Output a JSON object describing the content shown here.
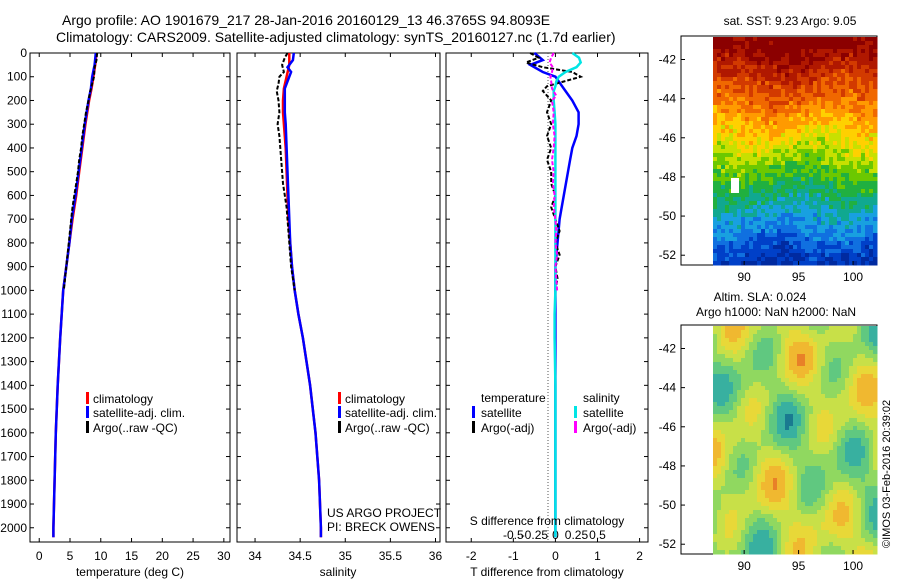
{
  "header": {
    "title_line1": "Argo profile: AO 1901679_217 28-Jan-2016 20160129_13 46.3765S 94.8093E",
    "title_line2": "Climatology: CARS2009. Satellite-adjusted climatology: synTS_20160127.nc (1.7d earlier)"
  },
  "chart_data": [
    {
      "type": "line",
      "id": "temperature",
      "xlabel": "temperature (deg C)",
      "ylabel": "",
      "xlim": [
        -1.5,
        31
      ],
      "ylim": [
        0,
        2060
      ],
      "x_ticks": [
        "0",
        "5",
        "10",
        "15",
        "20",
        "25",
        "30"
      ],
      "y_ticks": [
        "0",
        "100",
        "200",
        "300",
        "400",
        "500",
        "600",
        "700",
        "800",
        "900",
        "1000",
        "1100",
        "1200",
        "1300",
        "1400",
        "1500",
        "1600",
        "1700",
        "1800",
        "1900",
        "2000"
      ],
      "legend": [
        "climatology",
        "satellite-adj. clim.",
        "Argo(..raw -QC)"
      ],
      "series": [
        {
          "name": "climatology",
          "color": "#ff0000",
          "depth": [
            0,
            50,
            100,
            150,
            200,
            300,
            400,
            500,
            600,
            700,
            800,
            900,
            1000,
            1200,
            1400,
            1600,
            1800,
            2000,
            2040
          ],
          "values": [
            9.3,
            9.1,
            8.8,
            8.5,
            8.1,
            7.5,
            7.0,
            6.5,
            6.0,
            5.4,
            4.9,
            4.4,
            3.9,
            3.4,
            3.0,
            2.7,
            2.5,
            2.3,
            2.3
          ]
        },
        {
          "name": "satellite-adj. clim.",
          "color": "#0000ff",
          "depth": [
            0,
            50,
            100,
            150,
            200,
            300,
            400,
            500,
            600,
            700,
            800,
            900,
            1000,
            1200,
            1400,
            1600,
            1800,
            2000,
            2040
          ],
          "values": [
            9.2,
            9.0,
            8.6,
            8.4,
            8.0,
            7.4,
            6.9,
            6.4,
            5.9,
            5.3,
            4.9,
            4.4,
            3.9,
            3.4,
            3.0,
            2.7,
            2.5,
            2.3,
            2.3
          ]
        },
        {
          "name": "Argo(..raw -QC)",
          "color": "#000000",
          "depth": [
            0,
            30,
            60,
            100,
            130,
            160,
            200,
            250,
            300,
            350,
            400,
            450,
            500,
            550,
            600,
            650,
            700,
            750,
            800,
            850,
            900,
            1000
          ],
          "values": [
            9.4,
            9.3,
            9.0,
            8.9,
            8.6,
            8.3,
            8.0,
            7.6,
            7.3,
            7.0,
            6.8,
            6.5,
            6.3,
            6.0,
            5.7,
            5.4,
            5.2,
            5.0,
            4.8,
            4.6,
            4.4,
            4.0
          ]
        }
      ]
    },
    {
      "type": "line",
      "id": "salinity",
      "xlabel": "salinity",
      "xlim": [
        33.8,
        36.05
      ],
      "ylim": [
        0,
        2060
      ],
      "x_ticks": [
        "34",
        "34.5",
        "35",
        "35.5",
        "36"
      ],
      "legend": [
        "climatology",
        "satellite-adj. clim.",
        "Argo(..raw -QC)"
      ],
      "annotation": [
        "US ARGO PROJECT",
        "PI: BRECK OWENS"
      ],
      "series": [
        {
          "name": "climatology",
          "color": "#ff0000",
          "depth": [
            0,
            50,
            100,
            150,
            200,
            250,
            300,
            400,
            500,
            600,
            700,
            800,
            900,
            1000,
            1100,
            1200,
            1300,
            1400,
            1500,
            1600,
            1700,
            1800,
            1900,
            2000,
            2040
          ],
          "values": [
            34.38,
            34.38,
            34.35,
            34.32,
            34.31,
            34.31,
            34.32,
            34.34,
            34.35,
            34.36,
            34.37,
            34.39,
            34.41,
            34.44,
            34.48,
            34.53,
            34.57,
            34.61,
            34.64,
            34.67,
            34.69,
            34.71,
            34.72,
            34.73,
            34.73
          ]
        },
        {
          "name": "satellite-adj. clim.",
          "color": "#0000ff",
          "depth": [
            0,
            30,
            60,
            80,
            100,
            150,
            200,
            250,
            300,
            400,
            500,
            600,
            700,
            800,
            900,
            1000,
            1100,
            1200,
            1300,
            1400,
            1500,
            1600,
            1700,
            1800,
            1900,
            2000,
            2040
          ],
          "values": [
            34.43,
            34.42,
            34.36,
            34.4,
            34.38,
            34.33,
            34.33,
            34.33,
            34.34,
            34.35,
            34.36,
            34.37,
            34.38,
            34.39,
            34.41,
            34.44,
            34.48,
            34.53,
            34.57,
            34.61,
            34.64,
            34.67,
            34.69,
            34.71,
            34.72,
            34.73,
            34.73
          ]
        },
        {
          "name": "Argo(..raw -QC)",
          "color": "#000000",
          "depth": [
            0,
            20,
            50,
            80,
            100,
            130,
            160,
            200,
            250,
            300,
            350,
            400,
            450,
            500,
            550,
            600,
            650,
            700,
            750,
            800,
            850,
            900,
            950,
            1000
          ],
          "values": [
            34.36,
            34.33,
            34.3,
            34.32,
            34.27,
            34.26,
            34.24,
            34.26,
            34.27,
            34.25,
            34.27,
            34.28,
            34.29,
            34.3,
            34.31,
            34.33,
            34.35,
            34.36,
            34.37,
            34.38,
            34.39,
            34.4,
            34.42,
            34.44
          ]
        }
      ]
    },
    {
      "type": "line",
      "id": "difference",
      "xlabel": "T difference from climatology",
      "x2label": "S difference from climatology",
      "xlim": [
        -2.6,
        2.2
      ],
      "ylim": [
        0,
        2060
      ],
      "x_ticks": [
        "-2",
        "-1",
        "0",
        "1",
        "2"
      ],
      "x2_ticks": [
        "-0.5",
        "-0.25",
        "0",
        "0.25",
        "0.5"
      ],
      "legend_titles": [
        "temperature",
        "salinity"
      ],
      "legend": [
        "satellite",
        "Argo(-adj)",
        "satellite",
        "Argo(-adj)"
      ],
      "series": [
        {
          "name": "satellite",
          "group": "temperature",
          "color": "#0000ff",
          "depth": [
            0,
            30,
            50,
            80,
            100,
            150,
            200,
            250,
            300,
            350,
            400,
            450,
            500,
            600,
            700,
            800,
            900,
            1000,
            1100,
            1200,
            1400,
            1600,
            1800,
            2000,
            2040
          ],
          "values": [
            -0.5,
            -0.3,
            -0.6,
            -0.3,
            0,
            0.2,
            0.4,
            0.55,
            0.55,
            0.5,
            0.4,
            0.35,
            0.3,
            0.2,
            0.1,
            0.05,
            0,
            0,
            0,
            0,
            0,
            0,
            0,
            0,
            0
          ]
        },
        {
          "name": "Argo(-adj)",
          "group": "temperature",
          "color": "#000000",
          "depth": [
            0,
            20,
            40,
            60,
            80,
            100,
            120,
            140,
            160,
            180,
            200,
            250,
            300,
            350,
            400,
            450,
            500,
            550,
            600,
            650,
            700,
            750,
            800,
            850,
            900,
            950,
            1000
          ],
          "values": [
            -0.6,
            -0.4,
            -0.7,
            -0.3,
            0.4,
            0.6,
            0.2,
            -0.2,
            -0.3,
            -0.2,
            -0.1,
            -0.2,
            -0.1,
            -0.2,
            -0.1,
            -0.2,
            -0.1,
            -0.1,
            0,
            -0.1,
            0,
            0.1,
            0,
            0.1,
            0,
            0.05,
            0
          ]
        },
        {
          "name": "satellite",
          "group": "salinity",
          "color": "#00e5e5",
          "depth": [
            0,
            20,
            40,
            60,
            80,
            100,
            120,
            140,
            160,
            180,
            200,
            250,
            300,
            400,
            500,
            600,
            700,
            800,
            900,
            1000,
            1100,
            1200,
            1400,
            1600,
            1800,
            2000,
            2040
          ],
          "values": [
            0.2,
            0.28,
            0.3,
            0.25,
            0.12,
            0.04,
            0.01,
            0,
            -0.02,
            -0.02,
            -0.02,
            -0.01,
            0,
            0,
            0,
            0,
            0,
            0,
            0,
            0,
            -0.01,
            -0.01,
            0,
            0,
            0,
            0,
            0
          ]
        },
        {
          "name": "Argo(-adj)",
          "group": "salinity",
          "color": "#ff00ff",
          "depth": [
            0,
            20,
            40,
            60,
            80,
            100,
            120,
            150,
            180,
            200,
            250,
            300,
            350,
            400,
            450,
            500,
            550,
            600,
            650,
            700,
            750,
            800,
            850,
            900,
            950,
            1000
          ],
          "values": [
            -0.02,
            -0.05,
            -0.07,
            -0.03,
            -0.04,
            -0.06,
            -0.05,
            -0.04,
            0.01,
            -0.04,
            -0.02,
            -0.03,
            -0.01,
            -0.02,
            -0.04,
            -0.02,
            -0.03,
            -0.01,
            -0.02,
            0,
            0.01,
            0,
            0.02,
            0,
            0.01,
            0.02
          ]
        }
      ]
    },
    {
      "type": "heatmap",
      "id": "sst-map",
      "title": "sat. SST: 9.23  Argo: 9.05",
      "x_ticks": [
        "90",
        "95",
        "100"
      ],
      "y_ticks": [
        "-42",
        "-44",
        "-46",
        "-48",
        "-50",
        "-52"
      ]
    },
    {
      "type": "heatmap",
      "id": "sla-map",
      "title_line1": "Altim. SLA: 0.024",
      "title_line2": "Argo h1000: NaN h2000: NaN",
      "x_ticks": [
        "90",
        "95",
        "100"
      ],
      "y_ticks": [
        "-42",
        "-44",
        "-46",
        "-48",
        "-50",
        "-52"
      ]
    }
  ],
  "footer": {
    "credit": "©IMOS 03-Feb-2016 20:39:02"
  }
}
